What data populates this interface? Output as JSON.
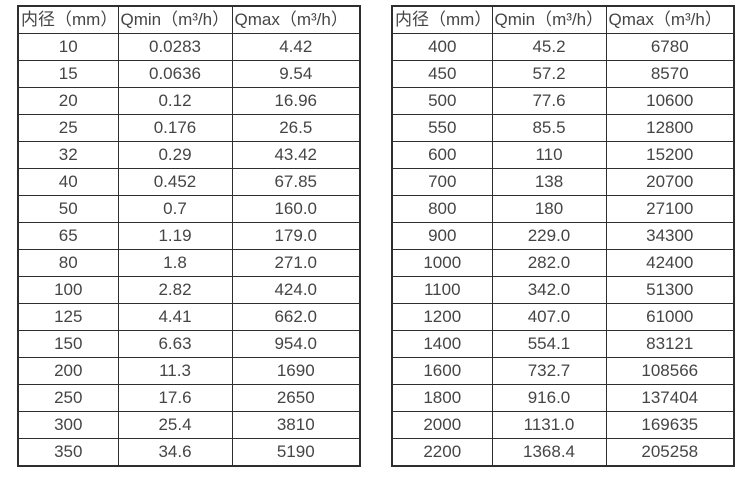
{
  "page": {
    "background": "#ffffff",
    "text_color": "#454545",
    "border_color": "#2e2e2e"
  },
  "chart_data": [
    {
      "type": "table",
      "name": "flow-rate-table-small-diameters",
      "columns": [
        "内径（mm）",
        "Qmin（m³/h）",
        "Qmax（m³/h）"
      ],
      "rows": [
        [
          "10",
          "0.0283",
          "4.42"
        ],
        [
          "15",
          "0.0636",
          "9.54"
        ],
        [
          "20",
          "0.12",
          "16.96"
        ],
        [
          "25",
          "0.176",
          "26.5"
        ],
        [
          "32",
          "0.29",
          "43.42"
        ],
        [
          "40",
          "0.452",
          "67.85"
        ],
        [
          "50",
          "0.7",
          "160.0"
        ],
        [
          "65",
          "1.19",
          "179.0"
        ],
        [
          "80",
          "1.8",
          "271.0"
        ],
        [
          "100",
          "2.82",
          "424.0"
        ],
        [
          "125",
          "4.41",
          "662.0"
        ],
        [
          "150",
          "6.63",
          "954.0"
        ],
        [
          "200",
          "11.3",
          "1690"
        ],
        [
          "250",
          "17.6",
          "2650"
        ],
        [
          "300",
          "25.4",
          "3810"
        ],
        [
          "350",
          "34.6",
          "5190"
        ]
      ]
    },
    {
      "type": "table",
      "name": "flow-rate-table-large-diameters",
      "columns": [
        "内径（mm）",
        "Qmin（m³/h）",
        "Qmax（m³/h）"
      ],
      "rows": [
        [
          "400",
          "45.2",
          "6780"
        ],
        [
          "450",
          "57.2",
          "8570"
        ],
        [
          "500",
          "77.6",
          "10600"
        ],
        [
          "550",
          "85.5",
          "12800"
        ],
        [
          "600",
          "110",
          "15200"
        ],
        [
          "700",
          "138",
          "20700"
        ],
        [
          "800",
          "180",
          "27100"
        ],
        [
          "900",
          "229.0",
          "34300"
        ],
        [
          "1000",
          "282.0",
          "42400"
        ],
        [
          "1100",
          "342.0",
          "51300"
        ],
        [
          "1200",
          "407.0",
          "61000"
        ],
        [
          "1400",
          "554.1",
          "83121"
        ],
        [
          "1600",
          "732.7",
          "108566"
        ],
        [
          "1800",
          "916.0",
          "137404"
        ],
        [
          "2000",
          "1131.0",
          "169635"
        ],
        [
          "2200",
          "1368.4",
          "205258"
        ]
      ]
    }
  ]
}
